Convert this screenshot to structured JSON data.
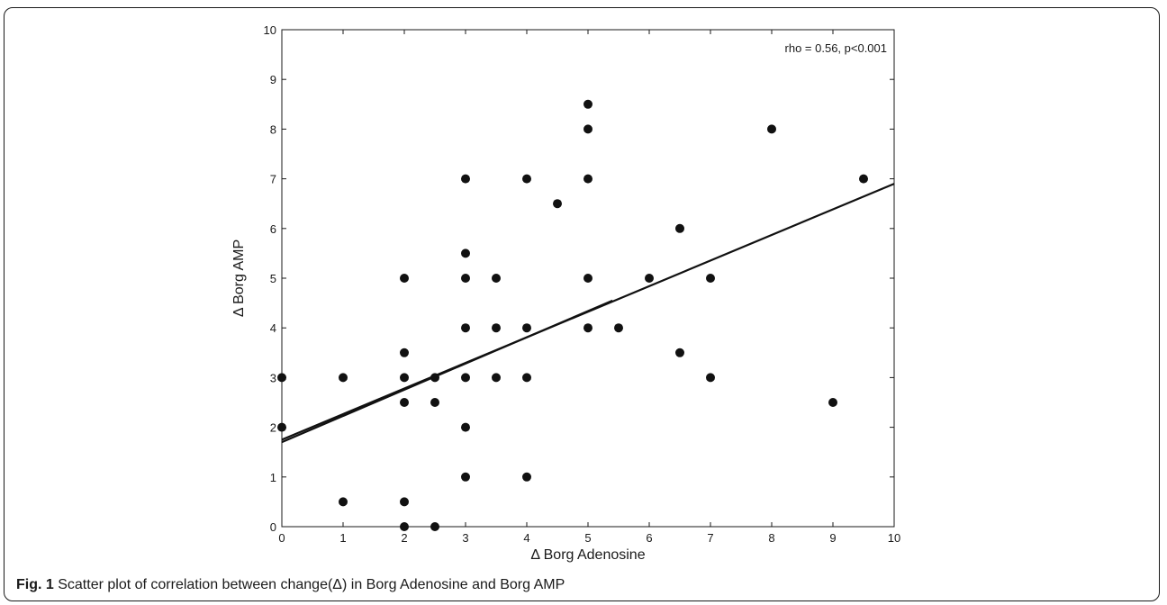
{
  "figure": {
    "label": "Fig. 1",
    "caption": "Scatter plot of correlation between change(Δ) in Borg Adenosine and Borg AMP"
  },
  "chart_data": {
    "type": "scatter",
    "xlabel": "Δ Borg Adenosine",
    "ylabel": "Δ Borg AMP",
    "xlim": [
      0,
      10
    ],
    "ylim": [
      0,
      10
    ],
    "xticks": [
      0,
      1,
      2,
      3,
      4,
      5,
      6,
      7,
      8,
      9,
      10
    ],
    "yticks": [
      0,
      1,
      2,
      3,
      4,
      5,
      6,
      7,
      8,
      9,
      10
    ],
    "annotation": "rho = 0.56, p<0.001",
    "points": [
      [
        0,
        3
      ],
      [
        0,
        2
      ],
      [
        1,
        3
      ],
      [
        1,
        0.5
      ],
      [
        2,
        5
      ],
      [
        2,
        3.5
      ],
      [
        2,
        3
      ],
      [
        2,
        2.5
      ],
      [
        2,
        0.5
      ],
      [
        2,
        0
      ],
      [
        2.5,
        3
      ],
      [
        2.5,
        2.5
      ],
      [
        2.5,
        0
      ],
      [
        3,
        7
      ],
      [
        3,
        5.5
      ],
      [
        3,
        5
      ],
      [
        3,
        4
      ],
      [
        3,
        3
      ],
      [
        3,
        2
      ],
      [
        3,
        1
      ],
      [
        3.5,
        5
      ],
      [
        3.5,
        4
      ],
      [
        3.5,
        3
      ],
      [
        4,
        7
      ],
      [
        4,
        4
      ],
      [
        4,
        3
      ],
      [
        4,
        1
      ],
      [
        4.5,
        6.5
      ],
      [
        5,
        8.5
      ],
      [
        5,
        8
      ],
      [
        5,
        7
      ],
      [
        5,
        5
      ],
      [
        5,
        4
      ],
      [
        5.5,
        4
      ],
      [
        6,
        5
      ],
      [
        6.5,
        6
      ],
      [
        6.5,
        3.5
      ],
      [
        7,
        5
      ],
      [
        7,
        3
      ],
      [
        8,
        8
      ],
      [
        9,
        2.5
      ],
      [
        9.5,
        7
      ]
    ],
    "fit_lines": [
      {
        "x": [
          0,
          10
        ],
        "y": [
          1.75,
          6.9
        ]
      },
      {
        "x": [
          0,
          5.4
        ],
        "y": [
          1.7,
          4.55
        ]
      }
    ]
  }
}
